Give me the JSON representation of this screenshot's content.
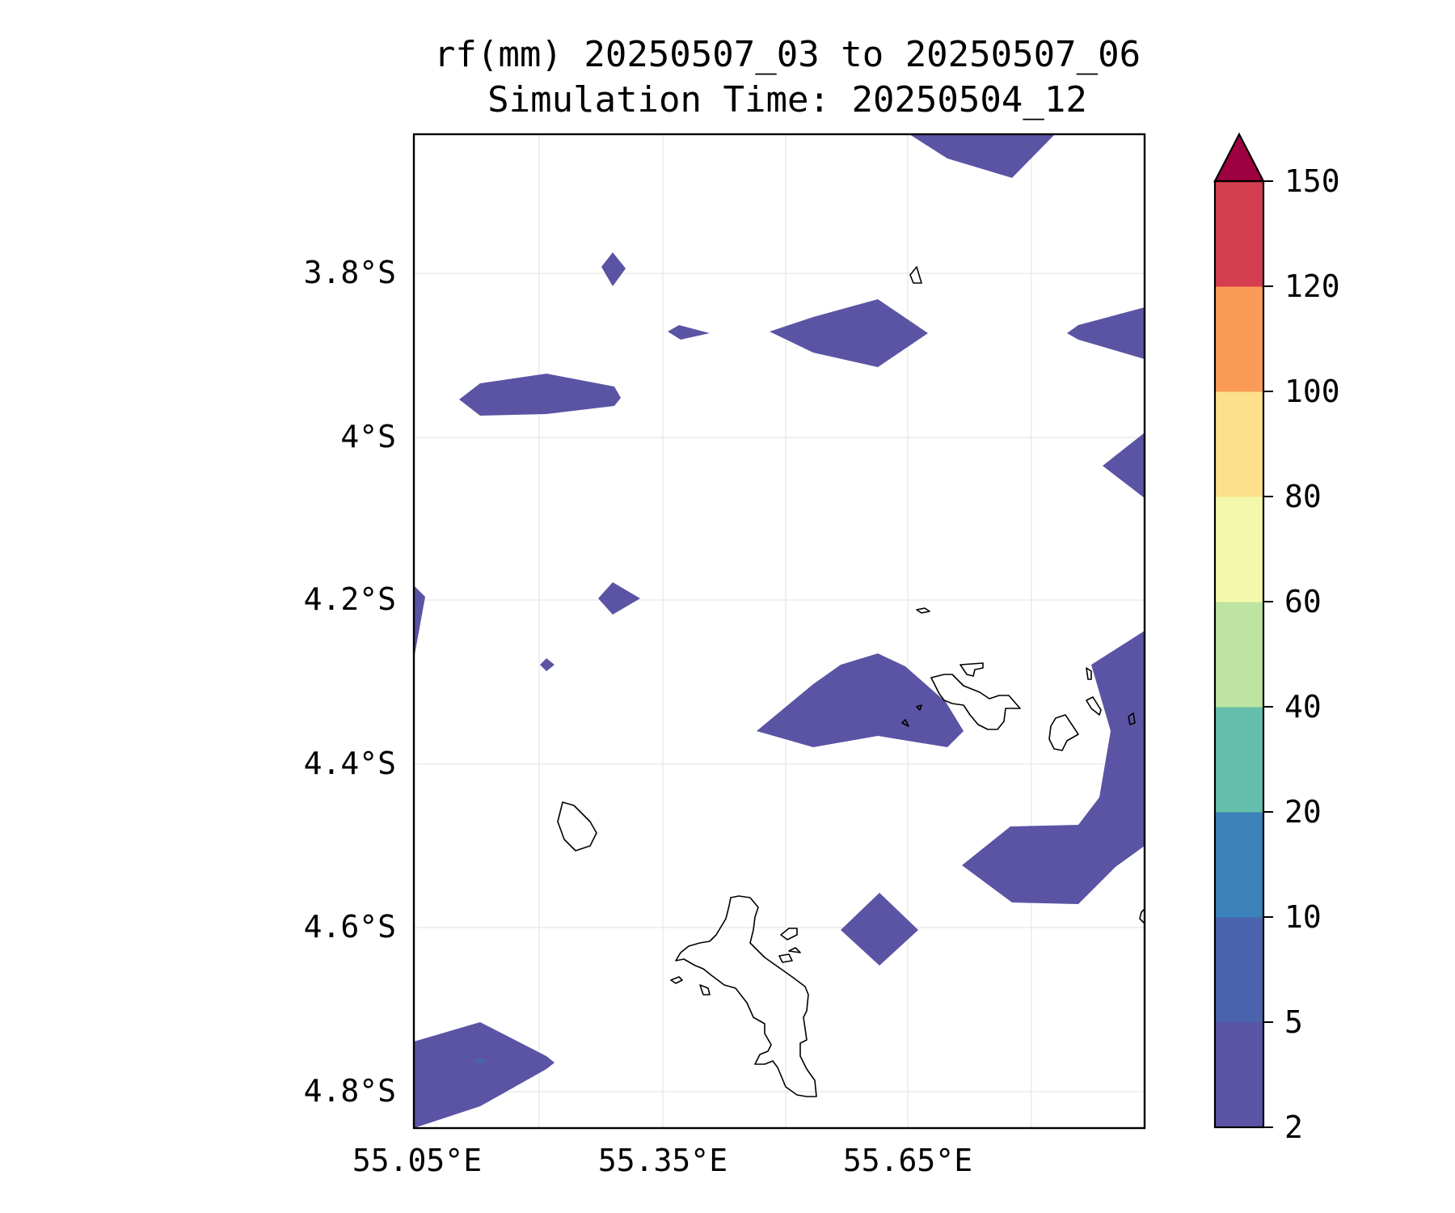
{
  "title": {
    "line1": "rf(mm) 20250507_03 to 20250507_06",
    "line2": "Simulation Time: 20250504_12"
  },
  "map": {
    "lon_ticks": [
      "55.05°E",
      "55.35°E",
      "55.65°E"
    ],
    "lat_ticks": [
      "3.8°S",
      "4°S",
      "4.2°S",
      "4.4°S",
      "4.6°S",
      "4.8°S"
    ]
  },
  "colorbar": {
    "levels": [
      "2",
      "5",
      "10",
      "20",
      "40",
      "60",
      "80",
      "100",
      "120",
      "150"
    ],
    "colors": [
      "#5b54a4",
      "#4b63ac",
      "#3b82bb",
      "#64bea9",
      "#bde4a0",
      "#f3f9aa",
      "#fce08b",
      "#fa9c58",
      "#d53e50",
      "#9e0142"
    ],
    "extend": "max"
  }
}
